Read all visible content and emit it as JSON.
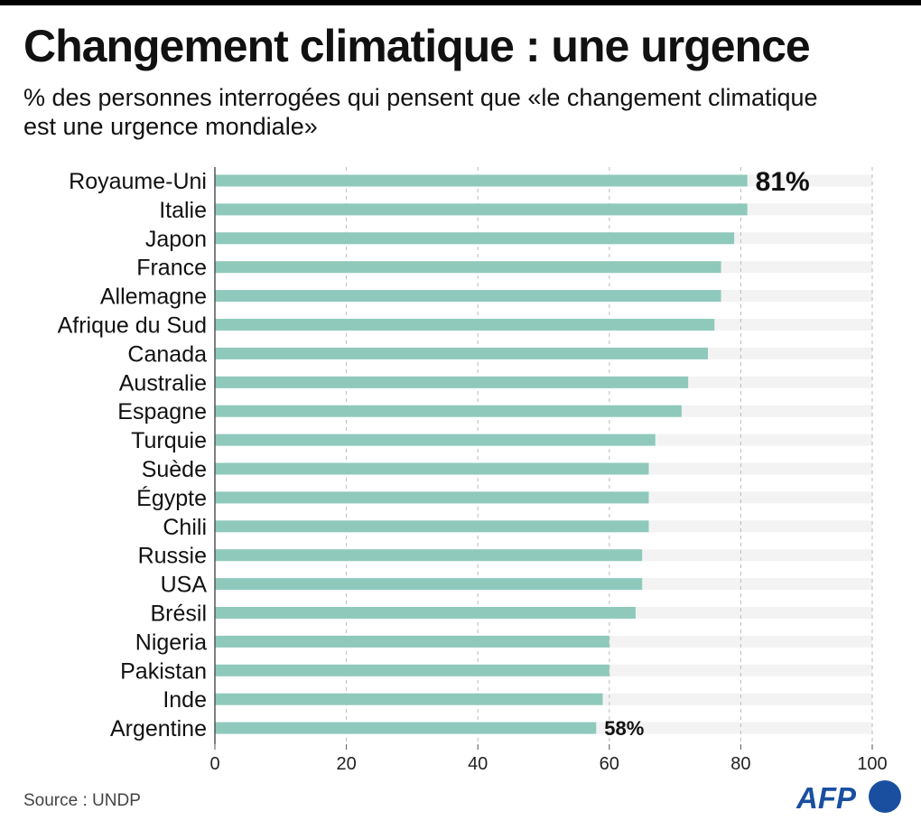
{
  "title": "Changement climatique : une urgence",
  "subtitle": "% des personnes interrogées qui pensent que «le changement climatique est une urgence mondiale»",
  "source": "Source : UNDP",
  "logo": "AFP",
  "colors": {
    "bar": "#8fc9bc",
    "track": "#f3f3f3",
    "text": "#111111"
  },
  "chart_data": {
    "type": "bar",
    "orientation": "horizontal",
    "categories": [
      "Royaume-Uni",
      "Italie",
      "Japon",
      "France",
      "Allemagne",
      "Afrique du Sud",
      "Canada",
      "Australie",
      "Espagne",
      "Turquie",
      "Suède",
      "Égypte",
      "Chili",
      "Russie",
      "USA",
      "Brésil",
      "Nigeria",
      "Pakistan",
      "Inde",
      "Argentine"
    ],
    "values": [
      81,
      81,
      79,
      77,
      77,
      76,
      75,
      72,
      71,
      67,
      66,
      66,
      66,
      65,
      65,
      64,
      60,
      60,
      59,
      58
    ],
    "data_labels": [
      {
        "category": "Royaume-Uni",
        "text": "81%"
      },
      {
        "category": "Argentine",
        "text": "58%"
      }
    ],
    "xlim": [
      0,
      100
    ],
    "xticks": [
      "0",
      "20",
      "40",
      "60",
      "80",
      "100"
    ],
    "grid": "vertical dashed"
  }
}
